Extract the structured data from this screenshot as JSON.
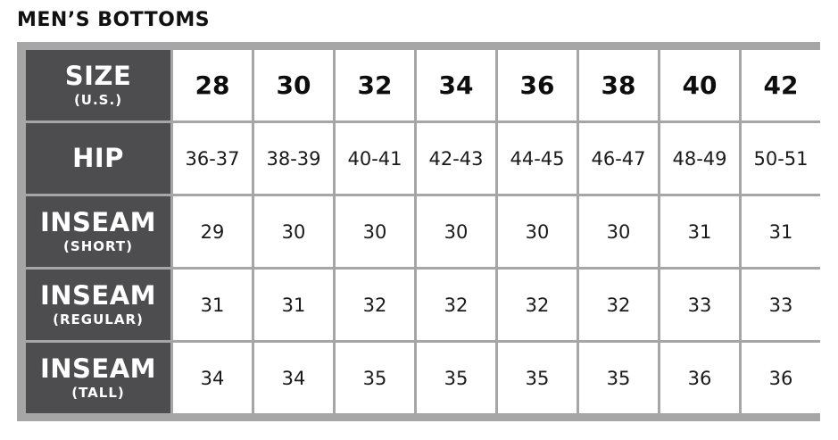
{
  "title": "MEN’S BOTTOMS",
  "colors": {
    "frame": "#a6a6a6",
    "label_background": "#4d4d4f",
    "label_text": "#ffffff",
    "cell_background": "#ffffff",
    "text": "#111111"
  },
  "table": {
    "header": {
      "label": "SIZE",
      "sublabel": "(U.S.)",
      "sizes": [
        "28",
        "30",
        "32",
        "34",
        "36",
        "38",
        "40",
        "42"
      ]
    },
    "rows": [
      {
        "label": "HIP",
        "sublabel": "",
        "values": [
          "36-37",
          "38-39",
          "40-41",
          "42-43",
          "44-45",
          "46-47",
          "48-49",
          "50-51"
        ]
      },
      {
        "label": "INSEAM",
        "sublabel": "(SHORT)",
        "values": [
          "29",
          "30",
          "30",
          "30",
          "30",
          "30",
          "31",
          "31"
        ]
      },
      {
        "label": "INSEAM",
        "sublabel": "(REGULAR)",
        "values": [
          "31",
          "31",
          "32",
          "32",
          "32",
          "32",
          "33",
          "33"
        ]
      },
      {
        "label": "INSEAM",
        "sublabel": "(TALL)",
        "values": [
          "34",
          "34",
          "35",
          "35",
          "35",
          "35",
          "36",
          "36"
        ]
      }
    ]
  }
}
